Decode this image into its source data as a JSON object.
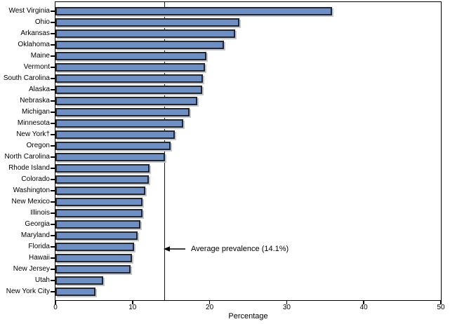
{
  "chart_data": {
    "type": "bar",
    "orientation": "horizontal",
    "title": "",
    "xlabel": "Percentage",
    "ylabel": "",
    "xlim": [
      0,
      50
    ],
    "x_ticks": [
      0,
      10,
      20,
      30,
      40,
      50
    ],
    "grid": false,
    "legend_position": "none",
    "bar_color": "#6d8fc3",
    "bar_border_color": "#23262e",
    "bar_shadow_color": "#c6c6c6",
    "categories": [
      "West Virginia",
      "Ohio",
      "Arkansas",
      "Oklahoma",
      "Maine",
      "Vermont",
      "South Carolina",
      "Alaska",
      "Nebraska",
      "Michigan",
      "Minnesota",
      "New York†",
      "Oregon",
      "North Carolina",
      "Rhode Island",
      "Colorado",
      "Washington",
      "New Mexico",
      "Illinois",
      "Georgia",
      "Maryland",
      "Florida",
      "Hawaii",
      "New Jersey",
      "Utah",
      "New York City"
    ],
    "values": [
      35.9,
      23.9,
      23.3,
      21.9,
      19.6,
      19.4,
      19.1,
      19.0,
      18.4,
      17.4,
      16.6,
      15.5,
      14.9,
      14.2,
      12.2,
      12.1,
      11.7,
      11.3,
      11.3,
      11.0,
      10.7,
      10.2,
      9.9,
      9.7,
      6.2,
      5.2
    ],
    "annotation": {
      "text": "Average prevalence (14.1%)",
      "x": 14.1
    }
  }
}
